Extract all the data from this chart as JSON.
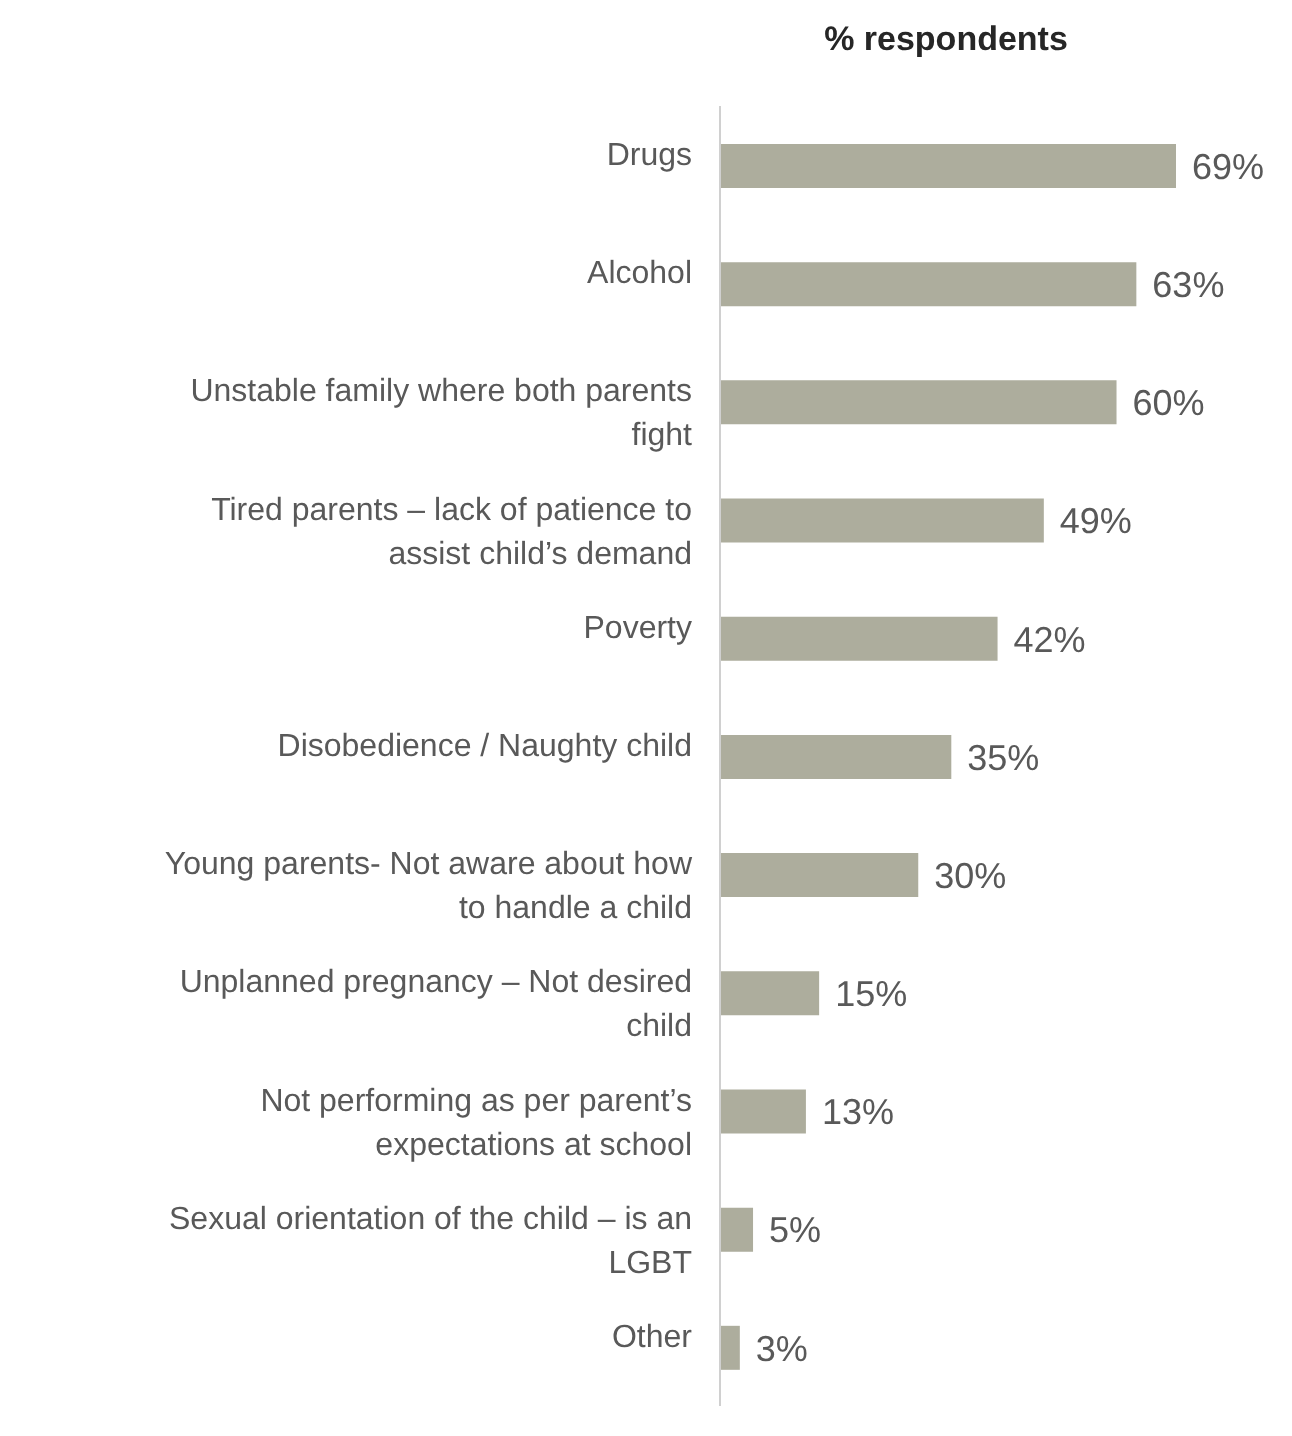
{
  "chart_data": {
    "type": "bar",
    "orientation": "horizontal",
    "title": "% respondents",
    "categories": [
      "Drugs",
      "Alcohol",
      "Unstable family where both parents fight",
      "Tired parents – lack of patience to assist child’s demand",
      "Poverty",
      "Disobedience / Naughty child",
      "Young parents- Not aware about how to handle a child",
      "Unplanned pregnancy – Not desired child",
      "Not performing as per parent’s expectations at school",
      "Sexual orientation of the child – is an LGBT",
      "Other"
    ],
    "values": [
      69,
      63,
      60,
      49,
      42,
      35,
      30,
      15,
      13,
      5,
      3
    ],
    "value_labels": [
      "69%",
      "63%",
      "60%",
      "49%",
      "42%",
      "35%",
      "30%",
      "15%",
      "13%",
      "5%",
      "3%"
    ],
    "color": "#adad9d"
  }
}
